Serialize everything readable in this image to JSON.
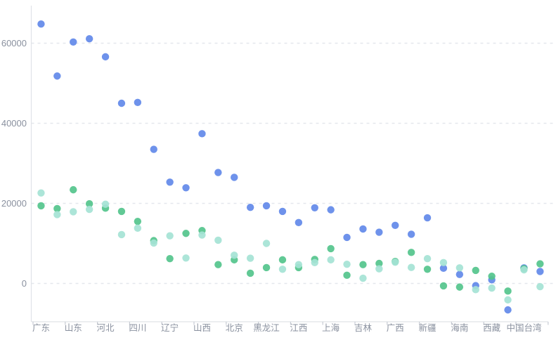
{
  "chart_data": {
    "type": "scatter",
    "title": "",
    "legend": "none",
    "x_axis": {
      "type": "category",
      "num_categories": 32,
      "label_every_n": 2,
      "visible_labels": [
        "广东",
        "山东",
        "河北",
        "四川",
        "辽宁",
        "山西",
        "北京",
        "黑龙江",
        "江西",
        "上海",
        "吉林",
        "广西",
        "新疆",
        "海南",
        "西藏",
        "中国台湾"
      ]
    },
    "y_axis": {
      "ticks": [
        0,
        20000,
        40000,
        60000
      ],
      "tick_labels": [
        "0",
        "20000",
        "40000",
        "60000"
      ],
      "range": [
        -9000,
        69500
      ],
      "gridlines": "dashed"
    },
    "series": [
      {
        "name": "series-blue",
        "color": "#6289e9",
        "values": [
          64800,
          51800,
          60300,
          61100,
          56600,
          45000,
          45200,
          33500,
          25300,
          23900,
          37400,
          27700,
          26500,
          19000,
          19400,
          18000,
          15200,
          18900,
          18400,
          11500,
          13600,
          12800,
          14500,
          12300,
          16400,
          3800,
          2250,
          -550,
          900,
          -6600,
          3900,
          3000
        ]
      },
      {
        "name": "series-green",
        "color": "#54c48c",
        "values": [
          19400,
          18700,
          23400,
          19900,
          18800,
          18000,
          15500,
          10700,
          6200,
          12500,
          13200,
          4700,
          5900,
          2550,
          3950,
          5900,
          3950,
          6000,
          8700,
          2050,
          4700,
          5000,
          5500,
          7750,
          3550,
          -600,
          -900,
          3250,
          1800,
          -1900,
          3700,
          4900
        ]
      },
      {
        "name": "series-cyan",
        "color": "#a5e3d5",
        "values": [
          22600,
          17200,
          17900,
          18500,
          19800,
          12200,
          13800,
          10100,
          11900,
          6350,
          12100,
          10800,
          7050,
          6300,
          10000,
          3550,
          4700,
          5200,
          5900,
          4800,
          1300,
          3650,
          5300,
          4000,
          6200,
          5200,
          3900,
          -1550,
          -1150,
          -4100,
          3400,
          -800
        ]
      }
    ],
    "style": {
      "axis_line_color": "#e0e3e8",
      "gridline_color": "#e4e7ed",
      "tick_color": "#c8ccd4",
      "label_color": "#8a919f",
      "background": "#ffffff",
      "point_radius": 5.2,
      "point_opacity": 0.92
    }
  }
}
